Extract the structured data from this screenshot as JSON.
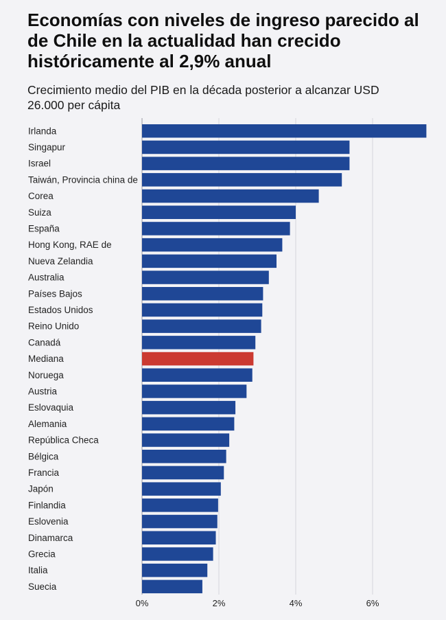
{
  "title": "Economías con niveles de ingreso parecido al de Chile en la actualidad han crecido históricamente al 2,9% anual",
  "subtitle": "Crecimiento medio del PIB en la década posterior a alcanzar USD 26.000 per cápita",
  "colors": {
    "bar": "#1f4796",
    "highlight": "#cb3a31",
    "grid": "#d6d6dc",
    "background": "#f3f3f6"
  },
  "chart_data": {
    "type": "bar",
    "orientation": "horizontal",
    "categories": [
      "Irlanda",
      "Singapur",
      "Israel",
      "Taiwán, Provincia china de",
      "Corea",
      "Suiza",
      "España",
      "Hong Kong, RAE de",
      "Nueva Zelandia",
      "Australia",
      "Países Bajos",
      "Estados Unidos",
      "Reino Unido",
      "Canadá",
      "Mediana",
      "Noruega",
      "Austria",
      "Eslovaquia",
      "Alemania",
      "República Checa",
      "Bélgica",
      "Francia",
      "Japón",
      "Finlandia",
      "Eslovenia",
      "Dinamarca",
      "Grecia",
      "Italia",
      "Suecia"
    ],
    "values": [
      7.4,
      5.4,
      5.4,
      5.2,
      4.6,
      4.0,
      3.85,
      3.65,
      3.5,
      3.3,
      3.15,
      3.13,
      3.1,
      2.95,
      2.9,
      2.87,
      2.72,
      2.43,
      2.4,
      2.27,
      2.19,
      2.13,
      2.05,
      1.98,
      1.96,
      1.92,
      1.85,
      1.7,
      1.57
    ],
    "highlight_category": "Mediana",
    "xlim": [
      0,
      7.4
    ],
    "xticks": [
      0,
      2,
      4,
      6
    ],
    "xtick_labels": [
      "0%",
      "2%",
      "4%",
      "6%"
    ],
    "grid": "vertical",
    "xlabel": "",
    "ylabel": ""
  }
}
